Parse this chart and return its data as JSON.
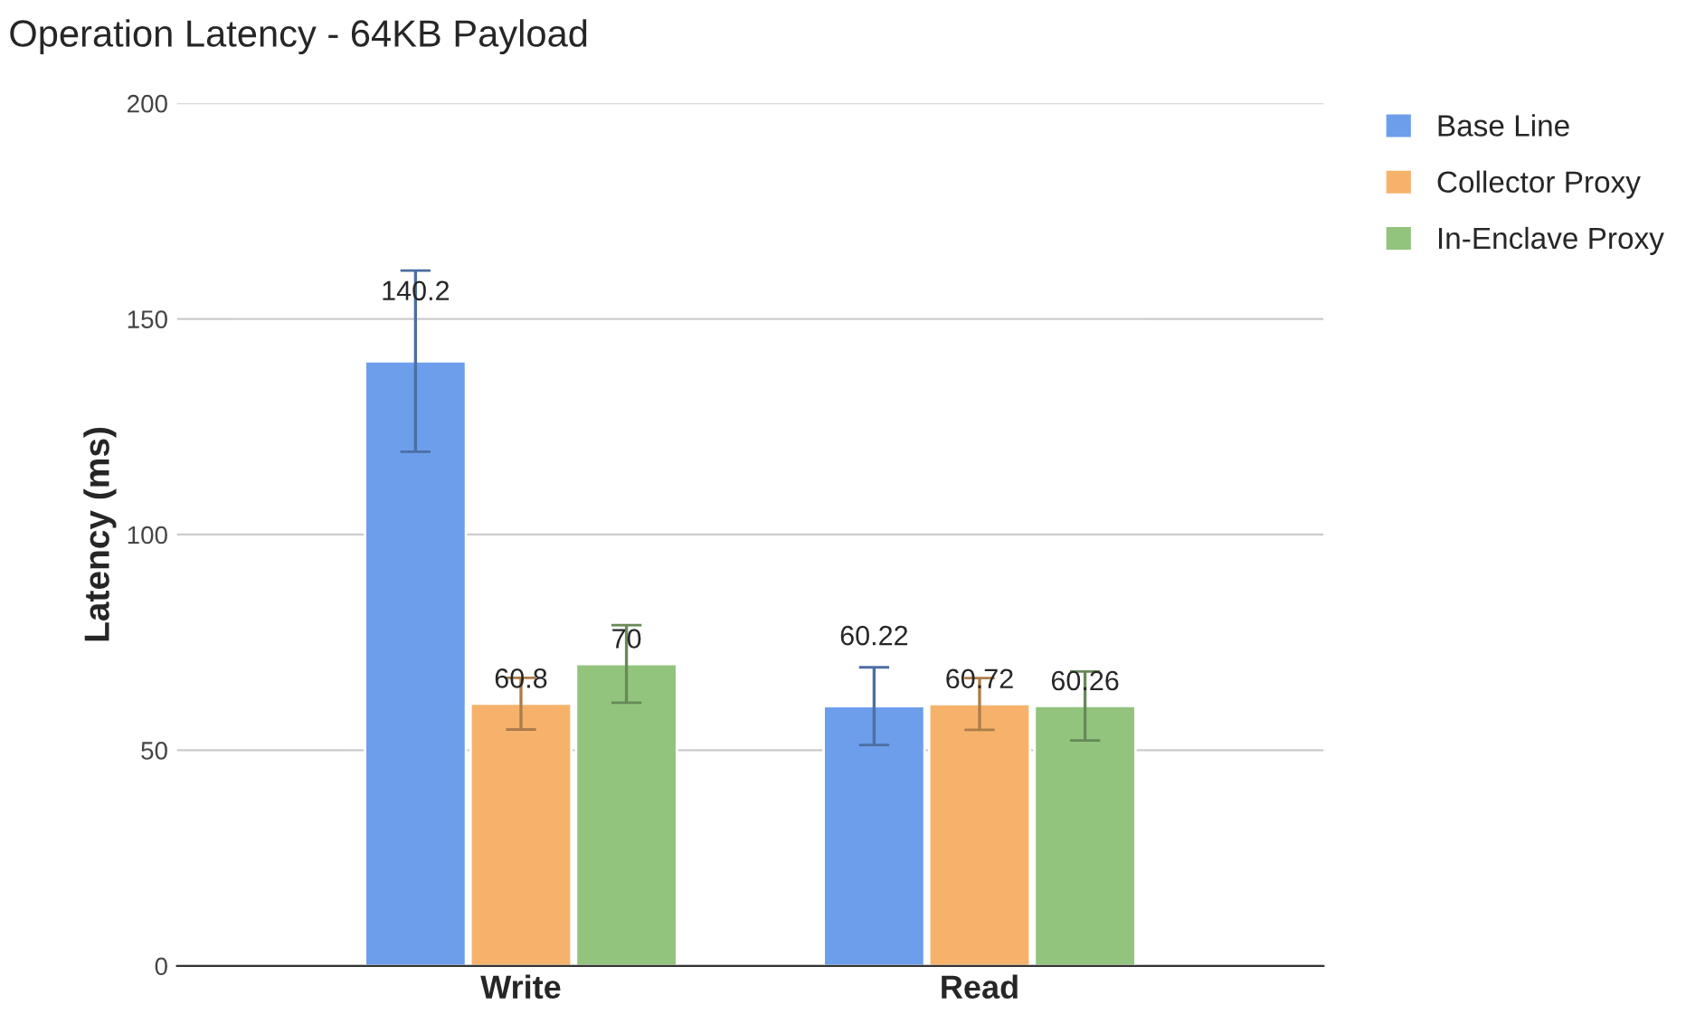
{
  "chart_data": {
    "type": "bar",
    "title": "Operation Latency - 64KB Payload",
    "ylabel": "Latency (ms)",
    "categories": [
      "Write",
      "Read"
    ],
    "series": [
      {
        "name": "Base Line",
        "color": "#6d9eeb",
        "values": [
          140.2,
          60.22
        ],
        "errors": [
          21,
          9
        ]
      },
      {
        "name": "Collector Proxy",
        "color": "#f6b26b",
        "values": [
          60.8,
          60.72
        ],
        "errors": [
          6,
          6
        ]
      },
      {
        "name": "In-Enclave Proxy",
        "color": "#93c47d",
        "values": [
          70,
          60.26
        ],
        "errors": [
          9,
          8
        ]
      }
    ],
    "ylim": [
      0,
      200
    ],
    "yticks": [
      0,
      50,
      100,
      150,
      200
    ],
    "grid": "y",
    "legend": "top right",
    "data_labels": true
  }
}
